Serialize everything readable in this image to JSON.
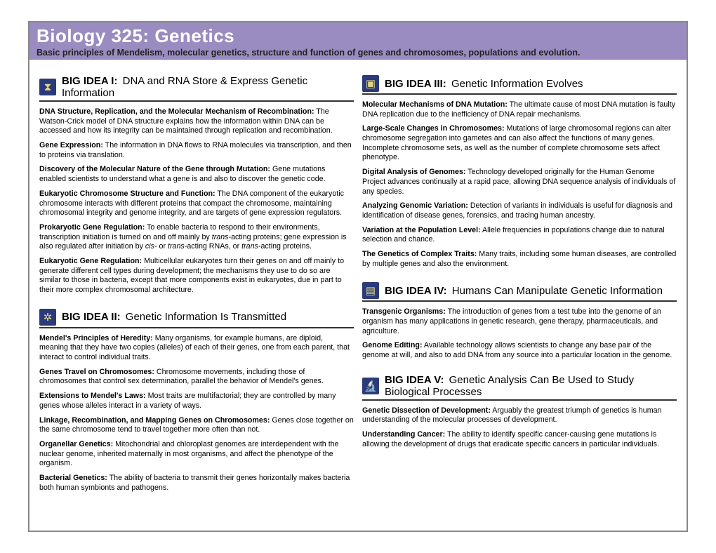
{
  "header": {
    "title": "Biology 325: Genetics",
    "subtitle": "Basic principles of Mendelism, molecular genetics, structure and function of genes and chromosomes, populations and evolution."
  },
  "colors": {
    "header_bg": "#9a8cc0",
    "icon_bg": "#2a3a7a",
    "rule": "#333333",
    "frame": "#888888"
  },
  "sections": [
    {
      "id": "idea1",
      "icon_glyph": "⧗",
      "title": "BIG IDEA I:",
      "subtitle": "DNA and RNA Store & Express Genetic Information",
      "topics": [
        {
          "bold": "DNA Structure, Replication, and the Molecular Mechanism of Recombination:",
          "text": " The Watson-Crick model of DNA structure explains how the information within DNA can be accessed and how its integrity can be maintained through replication and recombination."
        },
        {
          "bold": "Gene Expression:",
          "text": " The information in DNA flows to RNA molecules via transcription, and then to proteins via translation."
        },
        {
          "bold": "Discovery of the Molecular Nature of the Gene through Mutation:",
          "text": " Gene mutations enabled scientists to understand what a gene is and also to discover the genetic code."
        },
        {
          "bold": "Eukaryotic Chromosome Structure and Function:",
          "text": " The DNA component of the eukaryotic chromosome interacts with different proteins that compact the chromosome, maintaining chromosomal integrity and genome integrity, and are targets of gene expression regulators."
        },
        {
          "bold": "Prokaryotic Gene Regulation:",
          "text": " To enable bacteria to respond to their environments, transcription initiation is turned on and off mainly by trans-acting proteins; gene expression is also regulated after initiation by cis- or trans-acting RNAs, or trans-acting proteins."
        },
        {
          "bold": "Eukaryotic Gene Regulation:",
          "text": " Multicellular eukaryotes turn their genes on and off mainly to generate different cell types during development; the mechanisms they use to do so are similar to those in bacteria, except that more components exist in eukaryotes, due in part to their more complex chromosomal architecture."
        }
      ]
    },
    {
      "id": "idea2",
      "icon_glyph": "✲",
      "title": "BIG IDEA II:",
      "subtitle": "Genetic Information Is Transmitted",
      "topics": [
        {
          "bold": "Mendel's Principles of Heredity:",
          "text": " Many organisms, for example humans, are diploid, meaning that they have two copies (alleles) of each of their genes, one from each parent, that interact to control individual traits."
        },
        {
          "bold": "Genes Travel on Chromosomes:",
          "text": " Chromosome movements, including those of chromosomes that control sex determination, parallel the behavior of Mendel's genes."
        },
        {
          "bold": "Extensions to Mendel's Laws:",
          "text": " Most traits are multifactorial; they are controlled by many genes whose alleles interact in a variety of ways."
        },
        {
          "bold": "Linkage, Recombination, and Mapping Genes on Chromosomes:",
          "text": " Genes close together on the same chromosome tend to travel together more often than not."
        },
        {
          "bold": "Organellar Genetics:",
          "text": " Mitochondrial and chloroplast genomes are interdependent with the nuclear genome, inherited maternally in most organisms, and affect the phenotype of the organism."
        },
        {
          "bold": "Bacterial Genetics:",
          "text": " The ability of bacteria to transmit their genes horizontally makes bacteria both human symbionts and pathogens."
        }
      ]
    },
    {
      "id": "idea3",
      "icon_glyph": "▣",
      "title": "BIG IDEA III:",
      "subtitle": "Genetic Information Evolves",
      "topics": [
        {
          "bold": "Molecular Mechanisms of DNA Mutation:",
          "text": " The ultimate cause of most DNA mutation is faulty DNA replication due to the inefficiency of DNA repair mechanisms."
        },
        {
          "bold": "Large-Scale Changes in Chromosomes:",
          "text": " Mutations of large chromosomal regions can alter chromosome segregation into gametes and can also affect the functions of many genes. Incomplete chromosome sets, as well as the number of complete chromosome sets affect phenotype."
        },
        {
          "bold": "Digital Analysis of Genomes:",
          "text": " Technology developed originally for the Human Genome Project advances continually at a rapid pace, allowing DNA sequence analysis of individuals of any species."
        },
        {
          "bold": "Analyzing Genomic Variation:",
          "text": " Detection of variants in individuals is useful for diagnosis and identification of disease genes, forensics, and tracing human ancestry."
        },
        {
          "bold": "Variation at the Population Level:",
          "text": " Allele frequencies in populations change due to natural selection and chance."
        },
        {
          "bold": "The Genetics of Complex Traits:",
          "text": " Many traits, including some human diseases, are controlled by multiple genes and also the environment."
        }
      ]
    },
    {
      "id": "idea4",
      "icon_glyph": "▤",
      "title": "BIG IDEA IV:",
      "subtitle": "Humans Can Manipulate Genetic Information",
      "topics": [
        {
          "bold": "Transgenic Organisms:",
          "text": " The introduction of genes from a test tube into the genome of an organism has many applications in genetic research, gene therapy, pharmaceuticals, and agriculture."
        },
        {
          "bold": "Genome Editing:",
          "text": " Available technology allows scientists to change any base pair of the genome at will, and also to add DNA from any source into a particular location in the genome."
        }
      ]
    },
    {
      "id": "idea5",
      "icon_glyph": "🔬",
      "title": "BIG IDEA V:",
      "subtitle": "Genetic Analysis Can Be Used to Study Biological Processes",
      "topics": [
        {
          "bold": "Genetic Dissection of Development:",
          "text": " Arguably the greatest triumph of genetics is human understanding of the molecular processes of development."
        },
        {
          "bold": "Understanding Cancer:",
          "text": " The ability to identify specific cancer-causing gene mutations is allowing the development of drugs that eradicate specific cancers in particular individuals."
        }
      ]
    }
  ],
  "layout": {
    "columns": [
      [
        "idea1",
        "idea2"
      ],
      [
        "idea3",
        "idea4",
        "idea5"
      ]
    ]
  }
}
